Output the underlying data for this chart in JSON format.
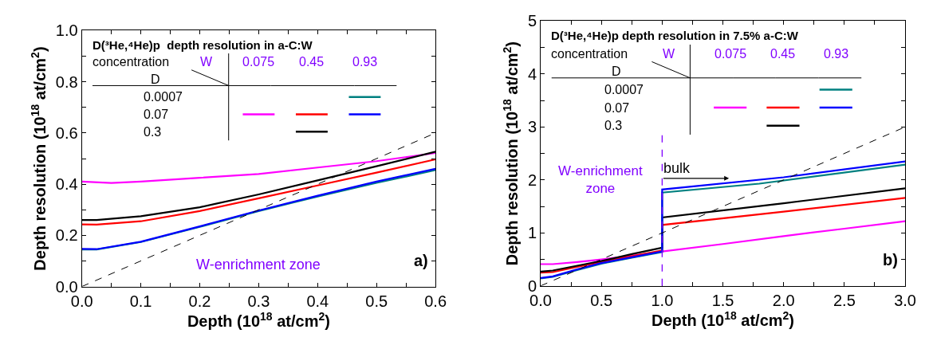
{
  "chart_data": [
    {
      "type": "line",
      "title": "D(³He,⁴He)p  depth resolution in a-C:W",
      "xlabel": "Depth (10$^{18}$ at/cm$^{2}$)",
      "ylabel": "Depth resolution (10$^{18}$ at/cm$^{2}$)",
      "xlim": [
        0,
        0.6
      ],
      "ylim": [
        0,
        1.0
      ],
      "xticks": [
        {
          "value": 0,
          "label": "0.0"
        },
        {
          "value": 0.05,
          "label": null
        },
        {
          "value": 0.1,
          "label": "0.1"
        },
        {
          "value": 0.15,
          "label": null
        },
        {
          "value": 0.2,
          "label": "0.2"
        },
        {
          "value": 0.25,
          "label": null
        },
        {
          "value": 0.3,
          "label": "0.3"
        },
        {
          "value": 0.35,
          "label": null
        },
        {
          "value": 0.4,
          "label": "0.4"
        },
        {
          "value": 0.45,
          "label": null
        },
        {
          "value": 0.5,
          "label": "0.5"
        },
        {
          "value": 0.55,
          "label": null
        },
        {
          "value": 0.6,
          "label": "0.6"
        }
      ],
      "yticks": [
        {
          "value": 0,
          "label": "0.0"
        },
        {
          "value": 0.1,
          "label": null
        },
        {
          "value": 0.2,
          "label": "0.2"
        },
        {
          "value": 0.3,
          "label": null
        },
        {
          "value": 0.4,
          "label": "0.4"
        },
        {
          "value": 0.5,
          "label": null
        },
        {
          "value": 0.6,
          "label": "0.6"
        },
        {
          "value": 0.7,
          "label": null
        },
        {
          "value": 0.8,
          "label": "0.8"
        },
        {
          "value": 0.9,
          "label": null
        },
        {
          "value": 1.0,
          "label": "1.0"
        }
      ],
      "series": [
        {
          "color": "#ff00ff",
          "x": [
            0,
            0.05,
            0.1,
            0.2,
            0.3,
            0.4,
            0.5,
            0.6
          ],
          "values": [
            0.41,
            0.405,
            0.41,
            0.425,
            0.44,
            0.465,
            0.49,
            0.522
          ]
        },
        {
          "color": "#ff0000",
          "x": [
            0,
            0.025,
            0.1,
            0.2,
            0.3,
            0.4,
            0.5,
            0.6
          ],
          "values": [
            0.243,
            0.242,
            0.255,
            0.295,
            0.345,
            0.395,
            0.445,
            0.497
          ]
        },
        {
          "color": "#000000",
          "x": [
            0,
            0.025,
            0.1,
            0.2,
            0.3,
            0.4,
            0.5,
            0.6
          ],
          "values": [
            0.26,
            0.26,
            0.275,
            0.31,
            0.36,
            0.415,
            0.47,
            0.527
          ]
        },
        {
          "color": "#008080",
          "x": [
            0,
            0.025,
            0.1,
            0.2,
            0.3,
            0.4,
            0.5,
            0.6
          ],
          "values": [
            0.145,
            0.145,
            0.174,
            0.233,
            0.295,
            0.352,
            0.405,
            0.455
          ]
        },
        {
          "color": "#0000ff",
          "x": [
            0,
            0.025,
            0.1,
            0.2,
            0.3,
            0.4,
            0.5,
            0.6
          ],
          "values": [
            0.147,
            0.146,
            0.175,
            0.235,
            0.297,
            0.355,
            0.41,
            0.46
          ]
        },
        {
          "color": "#000000",
          "line_style": "dashed",
          "x": [
            0,
            0.6
          ],
          "values": [
            0,
            0.6
          ]
        }
      ],
      "annotations": [
        "concentration",
        "W",
        "0.075",
        "0.45",
        "0.93",
        "D",
        "0.0007",
        "0.07",
        "0.3",
        "W-enrichment zone",
        "a)"
      ]
    },
    {
      "type": "line",
      "title": "D(³He,⁴He)p depth resolution in 7.5% a-C:W",
      "xlabel": "Depth (10$^{18}$ at/cm$^{2}$)",
      "ylabel": "Depth resolution (10$^{18}$ at/cm$^{2}$)",
      "xlim": [
        0,
        3.0
      ],
      "ylim": [
        0,
        5
      ],
      "xticks": [
        {
          "value": 0,
          "label": "0.0"
        },
        {
          "value": 0.25,
          "label": null
        },
        {
          "value": 0.5,
          "label": "0.5"
        },
        {
          "value": 0.75,
          "label": null
        },
        {
          "value": 1.0,
          "label": "1.0"
        },
        {
          "value": 1.25,
          "label": null
        },
        {
          "value": 1.5,
          "label": "1.5"
        },
        {
          "value": 1.75,
          "label": null
        },
        {
          "value": 2.0,
          "label": "2.0"
        },
        {
          "value": 2.25,
          "label": null
        },
        {
          "value": 2.5,
          "label": "2.5"
        },
        {
          "value": 2.75,
          "label": null
        },
        {
          "value": 3.0,
          "label": "3.0"
        }
      ],
      "yticks": [
        0,
        {
          "value": 0.5,
          "label": null
        },
        1,
        {
          "value": 1.5,
          "label": null
        },
        2,
        {
          "value": 2.5,
          "label": null
        },
        3,
        {
          "value": 3.5,
          "label": null
        },
        4,
        {
          "value": 4.5,
          "label": null
        },
        5
      ],
      "series": [
        {
          "color": "#ff00ff",
          "x": [
            0,
            0.1,
            0.3,
            0.5,
            0.75,
            1.0,
            1.5,
            2.0,
            2.5,
            3.0
          ],
          "values": [
            0.41,
            0.41,
            0.45,
            0.5,
            0.57,
            0.65,
            0.79,
            0.94,
            1.08,
            1.22
          ]
        },
        {
          "color": "#ff0000",
          "x": [
            0,
            0.1,
            0.3,
            0.5,
            0.75,
            1.0,
            1.0,
            2.0,
            3.0
          ],
          "values": [
            0.25,
            0.26,
            0.36,
            0.45,
            0.56,
            0.67,
            1.15,
            1.4,
            1.66
          ]
        },
        {
          "color": "#000000",
          "x": [
            0,
            0.1,
            0.3,
            0.5,
            0.75,
            1.0,
            1.0,
            2.0,
            3.0
          ],
          "values": [
            0.27,
            0.29,
            0.38,
            0.47,
            0.6,
            0.72,
            1.29,
            1.56,
            1.84
          ]
        },
        {
          "color": "#008080",
          "x": [
            0,
            0.1,
            0.3,
            0.5,
            0.75,
            1.0,
            1.0,
            1.8,
            3.0
          ],
          "values": [
            0.14,
            0.17,
            0.3,
            0.42,
            0.53,
            0.64,
            1.76,
            1.93,
            2.29
          ]
        },
        {
          "color": "#0000ff",
          "x": [
            0,
            0.1,
            0.3,
            0.5,
            0.75,
            1.0,
            1.0,
            2.0,
            3.0
          ],
          "values": [
            0.15,
            0.18,
            0.31,
            0.43,
            0.54,
            0.65,
            1.82,
            2.05,
            2.35
          ]
        },
        {
          "color": "#000000",
          "line_style": "dashed",
          "x": [
            0,
            3.0
          ],
          "values": [
            0,
            3.0
          ]
        }
      ],
      "ref_lines": [
        {
          "axis": "x",
          "value": 1.0,
          "color": "#8000ff",
          "line_style": "dashed"
        }
      ],
      "annotations": [
        "concentration",
        "W",
        "0.075",
        "0.45",
        "0.93",
        "D",
        "0.0007",
        "0.07",
        "0.3",
        "W-enrichment\nzone",
        "b)",
        {
          "text": "bulk",
          "x": 1.0,
          "y": 2.03
        }
      ]
    }
  ]
}
